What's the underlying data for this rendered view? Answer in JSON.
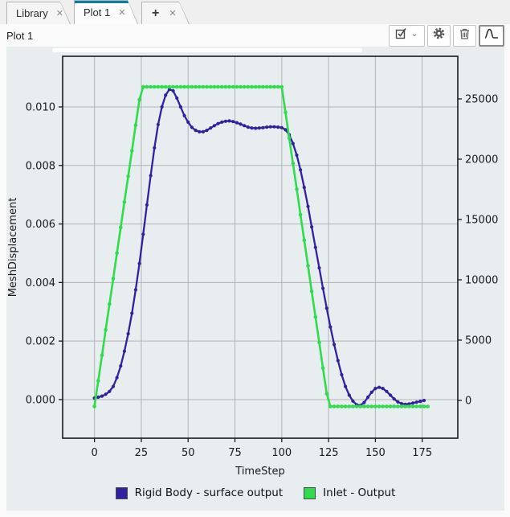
{
  "tabs": [
    {
      "label": "Library",
      "active": false
    },
    {
      "label": "Plot 1",
      "active": true
    },
    {
      "label": "+",
      "active": false
    }
  ],
  "icons": {
    "close": "✕",
    "chevron_down": "⌄",
    "toolbar": [
      "checkbox-dropdown-icon",
      "gear-icon",
      "trash-icon",
      "pulse-curve-icon"
    ]
  },
  "header": {
    "title": "Plot 1"
  },
  "colors": {
    "accent_teal": "#0d7f9e",
    "plot_background": "#e8edf0",
    "grid": "#b3b3b3",
    "frame": "#1a1a1a",
    "series_blue": "#31219e",
    "series_green": "#2edc4c"
  },
  "chart_data": {
    "type": "line",
    "title": "",
    "xlabel": "TimeStep",
    "ylabel_left": "MeshDisplacement",
    "grid": true,
    "legend_position": "bottom-center",
    "xlim": [
      -17,
      194
    ],
    "left_lim": [
      -0.00132,
      0.01173
    ],
    "right_lim": [
      -3133,
      28533
    ],
    "x_ticks": [
      0,
      25,
      50,
      75,
      100,
      125,
      150,
      175
    ],
    "x_tick_labels": [
      "0",
      "25",
      "50",
      "75",
      "100",
      "125",
      "150",
      "175"
    ],
    "left_ticks": [
      0.0,
      0.002,
      0.004,
      0.006,
      0.008,
      0.01
    ],
    "left_tick_labels": [
      "0.000",
      "0.002",
      "0.004",
      "0.006",
      "0.008",
      "0.010"
    ],
    "right_ticks": [
      0,
      5000,
      10000,
      15000,
      20000,
      25000
    ],
    "right_tick_labels": [
      "0",
      "5000",
      "10000",
      "15000",
      "20000",
      "25000"
    ],
    "colors": {
      "grid": "#b3b3b3",
      "frame": "#1a1a1a",
      "text": "#1a1a1a"
    },
    "series": [
      {
        "name": "Rigid Body - surface output",
        "axis": "left",
        "color": "#31219e",
        "width": 2.3,
        "marker_r": 2.1,
        "x": [
          0,
          2,
          4,
          6,
          8,
          10,
          12,
          14,
          16,
          18,
          20,
          22,
          24,
          26,
          28,
          30,
          32,
          34,
          36,
          38,
          40,
          42,
          44,
          46,
          48,
          50,
          52,
          54,
          56,
          58,
          60,
          62,
          64,
          66,
          68,
          70,
          72,
          74,
          76,
          78,
          80,
          82,
          84,
          86,
          88,
          90,
          92,
          94,
          96,
          98,
          100,
          102,
          104,
          106,
          108,
          110,
          112,
          114,
          116,
          118,
          120,
          122,
          124,
          126,
          128,
          130,
          132,
          134,
          136,
          138,
          140,
          142,
          144,
          146,
          148,
          150,
          152,
          154,
          156,
          158,
          160,
          162,
          164,
          166,
          168,
          170,
          172,
          174,
          176
        ],
        "y": [
          5e-05,
          8e-05,
          0.00012,
          0.00018,
          0.00028,
          0.00045,
          0.00075,
          0.00115,
          0.00165,
          0.00225,
          0.00295,
          0.00375,
          0.00465,
          0.00565,
          0.00665,
          0.00765,
          0.0086,
          0.0094,
          0.01,
          0.0104,
          0.0106,
          0.01055,
          0.0103,
          0.01,
          0.0097,
          0.00948,
          0.0093,
          0.0092,
          0.00915,
          0.00915,
          0.0092,
          0.00928,
          0.00936,
          0.00943,
          0.00948,
          0.00951,
          0.00952,
          0.0095,
          0.00946,
          0.00941,
          0.00936,
          0.00931,
          0.00928,
          0.00927,
          0.00928,
          0.00929,
          0.00931,
          0.00932,
          0.00932,
          0.00931,
          0.00929,
          0.00922,
          0.00905,
          0.00875,
          0.00835,
          0.00785,
          0.00725,
          0.0066,
          0.0059,
          0.0052,
          0.0045,
          0.0038,
          0.00312,
          0.00248,
          0.00188,
          0.00133,
          0.00085,
          0.00045,
          0.00015,
          -5e-05,
          -0.00018,
          -0.0002,
          -0.0001,
          8e-05,
          0.00025,
          0.00038,
          0.00042,
          0.00038,
          0.00028,
          0.00015,
          2e-05,
          -8e-05,
          -0.00014,
          -0.00016,
          -0.00015,
          -0.00012,
          -9e-05,
          -6e-05,
          -3e-05
        ]
      },
      {
        "name": "Inlet - Output",
        "axis": "right",
        "color": "#2edc4c",
        "width": 2.6,
        "marker_r": 2.3,
        "x": [
          0,
          2,
          4,
          6,
          8,
          10,
          12,
          14,
          16,
          18,
          20,
          22,
          24,
          26,
          28,
          30,
          32,
          34,
          36,
          38,
          40,
          42,
          44,
          46,
          48,
          50,
          52,
          54,
          56,
          58,
          60,
          62,
          64,
          66,
          68,
          70,
          72,
          74,
          76,
          78,
          80,
          82,
          84,
          86,
          88,
          90,
          92,
          94,
          96,
          98,
          100,
          102,
          104,
          106,
          108,
          110,
          112,
          114,
          116,
          118,
          120,
          122,
          124,
          126,
          128,
          130,
          132,
          134,
          136,
          138,
          140,
          142,
          144,
          146,
          148,
          150,
          152,
          154,
          156,
          158,
          160,
          162,
          164,
          166,
          168,
          170,
          172,
          174,
          176,
          178
        ],
        "y": [
          -500,
          1620,
          3740,
          5860,
          7980,
          10100,
          12220,
          14340,
          16460,
          18580,
          20700,
          22820,
          24940,
          26000,
          26000,
          26000,
          26000,
          26000,
          26000,
          26000,
          26000,
          26000,
          26000,
          26000,
          26000,
          26000,
          26000,
          26000,
          26000,
          26000,
          26000,
          26000,
          26000,
          26000,
          26000,
          26000,
          26000,
          26000,
          26000,
          26000,
          26000,
          26000,
          26000,
          26000,
          26000,
          26000,
          26000,
          26000,
          26000,
          26000,
          26000,
          23880,
          21760,
          19640,
          17520,
          15400,
          13280,
          11160,
          9040,
          6920,
          4800,
          2680,
          560,
          -500,
          -500,
          -500,
          -500,
          -500,
          -500,
          -500,
          -500,
          -500,
          -500,
          -500,
          -500,
          -500,
          -500,
          -500,
          -500,
          -500,
          -500,
          -500,
          -500,
          -500,
          -500,
          -500,
          -500,
          -500,
          -500,
          -500
        ]
      }
    ]
  }
}
